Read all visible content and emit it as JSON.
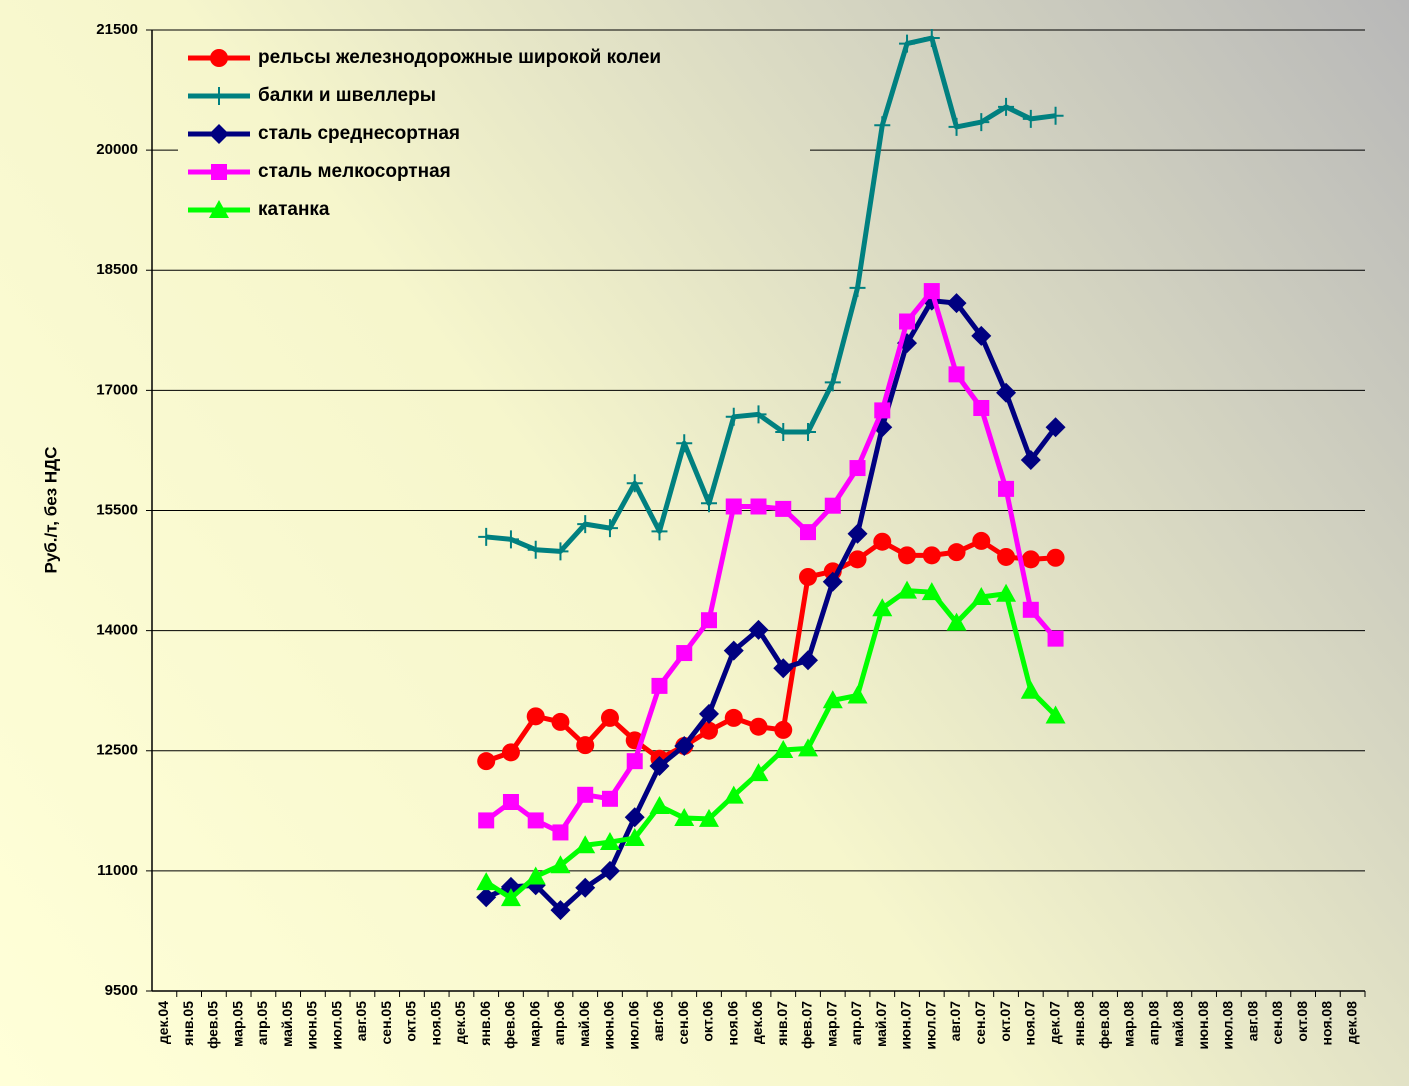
{
  "chart_data": {
    "type": "line",
    "y_label": "Руб./т, без НДС",
    "categories": [
      "дек.04",
      "янв.05",
      "фев.05",
      "мар.05",
      "апр.05",
      "май.05",
      "июн.05",
      "июл.05",
      "авг.05",
      "сен.05",
      "окт.05",
      "ноя.05",
      "дек.05",
      "янв.06",
      "фев.06",
      "мар.06",
      "апр.06",
      "май.06",
      "июн.06",
      "июл.06",
      "авг.06",
      "сен.06",
      "окт.06",
      "ноя.06",
      "дек.06",
      "янв.07",
      "фев.07",
      "мар.07",
      "апр.07",
      "май.07",
      "июн.07",
      "июл.07",
      "авг.07",
      "сен.07",
      "окт.07",
      "ноя.07",
      "дек.07",
      "янв.08",
      "фев.08",
      "мар.08",
      "апр.08",
      "май.08",
      "июн.08",
      "июл.08",
      "авг.08",
      "сен.08",
      "окт.08",
      "ноя.08",
      "дек.08"
    ],
    "series": [
      {
        "name": "рельсы железнодорожные широкой колеи",
        "color": "#ff0000",
        "marker": "circle",
        "values": [
          null,
          null,
          null,
          null,
          null,
          null,
          null,
          null,
          null,
          null,
          null,
          null,
          null,
          12370,
          12480,
          12930,
          12860,
          12570,
          12910,
          12630,
          12400,
          12560,
          12750,
          12910,
          12800,
          12760,
          14670,
          14740,
          14890,
          15110,
          14940,
          14940,
          14980,
          15120,
          14920,
          14890,
          14910,
          null,
          null,
          null,
          null,
          null,
          null,
          null,
          null,
          null,
          null,
          null,
          null
        ]
      },
      {
        "name": "балки и швеллеры",
        "color": "#008080",
        "marker": "plus",
        "values": [
          null,
          null,
          null,
          null,
          null,
          null,
          null,
          null,
          null,
          null,
          null,
          null,
          null,
          15170,
          15140,
          15010,
          14990,
          15330,
          15280,
          15840,
          15240,
          16340,
          15590,
          16670,
          16700,
          16480,
          16480,
          17100,
          18280,
          20310,
          21330,
          21400,
          20290,
          20350,
          20540,
          20390,
          20430,
          null,
          null,
          null,
          null,
          null,
          null,
          null,
          null,
          null,
          null,
          null,
          null
        ]
      },
      {
        "name": "сталь среднесортная",
        "color": "#000080",
        "marker": "diamond",
        "values": [
          null,
          null,
          null,
          null,
          null,
          null,
          null,
          null,
          null,
          null,
          null,
          null,
          null,
          10670,
          10800,
          10820,
          10510,
          10790,
          11000,
          11670,
          12310,
          12560,
          12960,
          13750,
          14010,
          13530,
          13630,
          14610,
          15210,
          16540,
          17590,
          18120,
          18090,
          17680,
          16970,
          16130,
          16540,
          null,
          null,
          null,
          null,
          null,
          null,
          null,
          null,
          null,
          null,
          null,
          null
        ]
      },
      {
        "name": "сталь мелкосортная",
        "color": "#ff00ff",
        "marker": "square",
        "values": [
          null,
          null,
          null,
          null,
          null,
          null,
          null,
          null,
          null,
          null,
          null,
          null,
          null,
          11630,
          11860,
          11630,
          11480,
          11950,
          11900,
          12370,
          13310,
          13720,
          14130,
          15550,
          15550,
          15520,
          15230,
          15560,
          16030,
          16750,
          17860,
          18240,
          17200,
          16780,
          15770,
          14260,
          13900,
          null,
          null,
          null,
          null,
          null,
          null,
          null,
          null,
          null,
          null,
          null,
          null
        ]
      },
      {
        "name": "катанка",
        "color": "#00ff00",
        "marker": "triangle",
        "values": [
          null,
          null,
          null,
          null,
          null,
          null,
          null,
          null,
          null,
          null,
          null,
          null,
          null,
          10860,
          10660,
          10930,
          11070,
          11320,
          11360,
          11410,
          11810,
          11660,
          11650,
          11940,
          12220,
          12510,
          12530,
          13130,
          13190,
          14280,
          14500,
          14480,
          14100,
          14420,
          14460,
          13250,
          12940,
          null,
          null,
          null,
          null,
          null,
          null,
          null,
          null,
          null,
          null,
          null,
          null
        ]
      }
    ],
    "ylim": [
      9500,
      21500
    ],
    "yticks": [
      9500,
      11000,
      12500,
      14000,
      15500,
      17000,
      18500,
      20000,
      21500
    ],
    "grid": true,
    "legend": "top-left"
  }
}
